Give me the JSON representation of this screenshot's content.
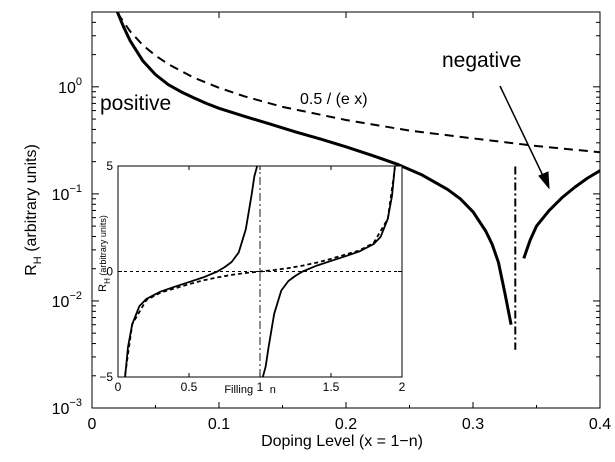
{
  "chart_data": [
    {
      "type": "line",
      "title": "",
      "xlabel": "Doping Level   (x = 1−n)",
      "ylabel_main": "R",
      "ylabel_sub": "H",
      "ylabel_rest": "  (arbitrary units)",
      "x_scale": "linear",
      "y_scale": "log",
      "xlim": [
        0,
        0.4
      ],
      "ylim": [
        0.001,
        5
      ],
      "x_ticks": [
        0,
        0.1,
        0.2,
        0.3,
        0.4
      ],
      "x_tick_labels": [
        "0",
        "0.1",
        "0.2",
        "0.3",
        "0.4"
      ],
      "y_ticks": [
        0.001,
        0.01,
        0.1,
        1
      ],
      "y_tick_labels": [
        {
          "base": "10",
          "exp": "−3"
        },
        {
          "base": "10",
          "exp": "−2"
        },
        {
          "base": "10",
          "exp": "−1"
        },
        {
          "base": "10",
          "exp": "0"
        }
      ],
      "grid": false,
      "annotations": {
        "positive": "positive",
        "negative": "negative",
        "formula": "0.5 / (e x)"
      },
      "series": [
        {
          "style": "solid-thick",
          "x": [
            0.02,
            0.025,
            0.03,
            0.04,
            0.05,
            0.06,
            0.07,
            0.08,
            0.09,
            0.1,
            0.12,
            0.14,
            0.16,
            0.18,
            0.2,
            0.22,
            0.24,
            0.26,
            0.28,
            0.29,
            0.3,
            0.31,
            0.315,
            0.32,
            0.325,
            0.33
          ],
          "y": [
            5.0,
            3.6,
            2.7,
            1.75,
            1.3,
            1.05,
            0.9,
            0.79,
            0.7,
            0.63,
            0.53,
            0.45,
            0.38,
            0.325,
            0.275,
            0.23,
            0.19,
            0.15,
            0.11,
            0.09,
            0.068,
            0.045,
            0.034,
            0.023,
            0.012,
            0.006
          ]
        },
        {
          "style": "solid-thick",
          "x": [
            0.34,
            0.345,
            0.35,
            0.36,
            0.37,
            0.38,
            0.39,
            0.4
          ],
          "y": [
            0.025,
            0.037,
            0.05,
            0.07,
            0.092,
            0.115,
            0.14,
            0.165
          ]
        },
        {
          "style": "dashed",
          "x": [
            0.02,
            0.03,
            0.04,
            0.05,
            0.06,
            0.08,
            0.1,
            0.12,
            0.15,
            0.2,
            0.25,
            0.3,
            0.35,
            0.4
          ],
          "y": [
            4.9,
            3.3,
            2.45,
            1.96,
            1.63,
            1.22,
            0.98,
            0.815,
            0.65,
            0.49,
            0.39,
            0.33,
            0.28,
            0.245
          ]
        },
        {
          "style": "dashdot-vertical",
          "x": [
            0.3333,
            0.3333
          ],
          "y": [
            0.18,
            0.0035
          ]
        }
      ]
    },
    {
      "type": "line",
      "title": "",
      "xlabel_left": "Filling",
      "xlabel_right": "n",
      "ylabel_main": "R",
      "ylabel_sub": "H",
      "ylabel_rest": "  (arbitrary units)",
      "xlim": [
        0,
        2
      ],
      "ylim": [
        -5,
        5
      ],
      "x_ticks": [
        0,
        0.5,
        1,
        1.5,
        2
      ],
      "x_tick_labels": [
        "0",
        "0.5",
        "1",
        "1.5",
        "2"
      ],
      "y_ticks": [
        -5,
        0,
        5
      ],
      "y_tick_labels": [
        "−5",
        "0",
        "5"
      ],
      "grid": false,
      "series": [
        {
          "style": "solid",
          "x": [
            0.05,
            0.07,
            0.1,
            0.15,
            0.2,
            0.3,
            0.4,
            0.5,
            0.6,
            0.7,
            0.75,
            0.8,
            0.85,
            0.9,
            0.92,
            0.94,
            0.96,
            0.98
          ],
          "y": [
            -5,
            -3.6,
            -2.5,
            -1.65,
            -1.3,
            -0.95,
            -0.72,
            -0.5,
            -0.28,
            0.0,
            0.2,
            0.45,
            0.9,
            2.0,
            2.8,
            3.6,
            4.5,
            5
          ]
        },
        {
          "style": "solid",
          "x": [
            1.02,
            1.04,
            1.06,
            1.08,
            1.1,
            1.15,
            1.2,
            1.25,
            1.3,
            1.4,
            1.5,
            1.6,
            1.7,
            1.8,
            1.85,
            1.9,
            1.93,
            1.95
          ],
          "y": [
            -5,
            -4.5,
            -3.6,
            -2.8,
            -2.0,
            -0.9,
            -0.45,
            -0.2,
            0.0,
            0.28,
            0.5,
            0.72,
            0.95,
            1.3,
            1.65,
            2.5,
            3.6,
            5
          ]
        },
        {
          "style": "dashed",
          "x": [
            0.05,
            0.1,
            0.2,
            0.3,
            0.4,
            0.5,
            0.6,
            0.7,
            0.8,
            0.9,
            1.0,
            1.1,
            1.2,
            1.3,
            1.4,
            1.5,
            1.6,
            1.7,
            1.8,
            1.9,
            1.95
          ],
          "y": [
            -4.9,
            -2.5,
            -1.35,
            -1.0,
            -0.8,
            -0.6,
            -0.42,
            -0.28,
            -0.16,
            -0.07,
            0.0,
            0.07,
            0.16,
            0.28,
            0.42,
            0.6,
            0.8,
            1.0,
            1.35,
            2.5,
            4.9
          ]
        },
        {
          "style": "dotted-hline",
          "x": [
            0,
            2
          ],
          "y": [
            0,
            0
          ]
        },
        {
          "style": "dashdot-vline",
          "x": [
            1,
            1
          ],
          "y": [
            -5,
            5
          ]
        }
      ]
    }
  ]
}
